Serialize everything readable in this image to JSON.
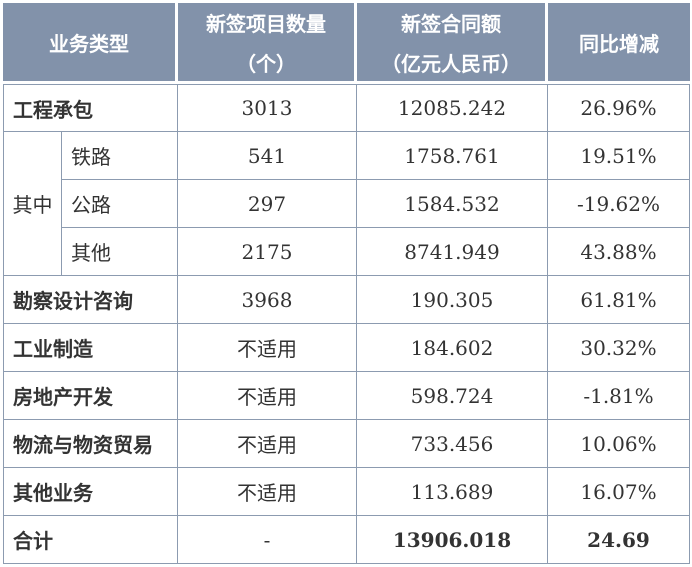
{
  "colors": {
    "header_bg": "#8292AA",
    "header_text": "#FFFFFF",
    "grid_border": "#8C9BB0",
    "body_text": "#333333"
  },
  "table": {
    "header": {
      "business_type": "业务类型",
      "projects_line1": "新签项目数量",
      "projects_line2": "（个）",
      "amount_line1": "新签合同额",
      "amount_line2": "（亿元人民币）",
      "yoy": "同比增减"
    },
    "group_label": "其中",
    "rows": [
      {
        "label": "工程承包",
        "projects": "3013",
        "amount": "12085.242",
        "yoy": "26.96%"
      },
      {
        "label": "铁路",
        "projects": "541",
        "amount": "1758.761",
        "yoy": "19.51%"
      },
      {
        "label": "公路",
        "projects": "297",
        "amount": "1584.532",
        "yoy": "-19.62%"
      },
      {
        "label": "其他",
        "projects": "2175",
        "amount": "8741.949",
        "yoy": "43.88%"
      },
      {
        "label": "勘察设计咨询",
        "projects": "3968",
        "amount": "190.305",
        "yoy": "61.81%"
      },
      {
        "label": "工业制造",
        "projects": "不适用",
        "amount": "184.602",
        "yoy": "30.32%"
      },
      {
        "label": "房地产开发",
        "projects": "不适用",
        "amount": "598.724",
        "yoy": "-1.81%"
      },
      {
        "label": "物流与物资贸易",
        "projects": "不适用",
        "amount": "733.456",
        "yoy": "10.06%"
      },
      {
        "label": "其他业务",
        "projects": "不适用",
        "amount": "113.689",
        "yoy": "16.07%"
      },
      {
        "label": "合计",
        "projects": "-",
        "amount": "13906.018",
        "yoy": "24.69"
      }
    ]
  }
}
